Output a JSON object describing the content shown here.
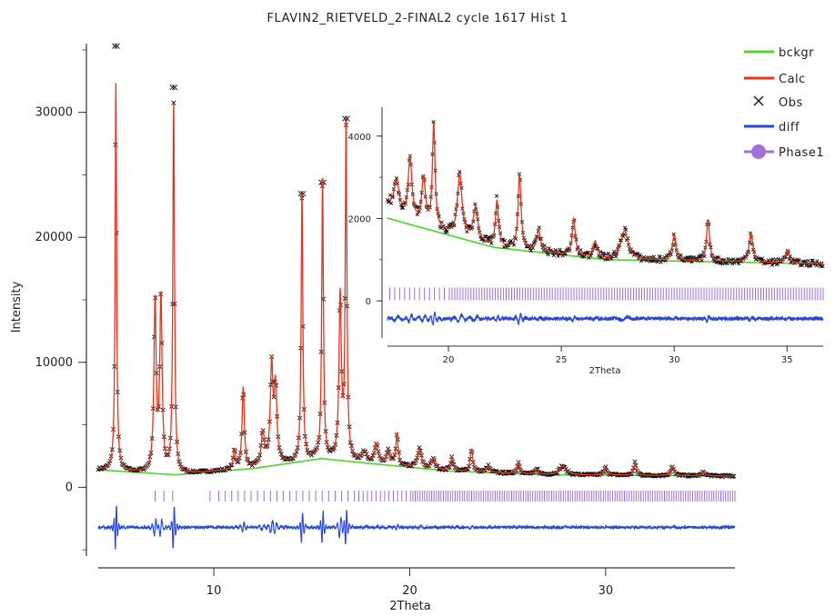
{
  "chart_data": [
    {
      "type": "line",
      "title": "FLAVIN2_RIETVELD_2-FINAL2 cycle 1617 Hist 1",
      "xlabel": "2Theta",
      "ylabel": "Intensity",
      "xlim": [
        4.1,
        36.6
      ],
      "ylim": [
        -5500,
        35500
      ],
      "x_ticks": [
        10,
        20,
        30
      ],
      "y_ticks": [
        0,
        10000,
        20000,
        30000
      ],
      "legend": [
        "bckgr",
        "Calc",
        "Obs",
        "diff",
        "Phase1"
      ],
      "legend_position": "top-right",
      "colors": {
        "bckgr": "#55d230",
        "Calc": "#e8351c",
        "Obs": "#111111",
        "diff": "#2447d6",
        "Phase1": "#a070dc"
      },
      "background": [
        [
          4.1,
          1400
        ],
        [
          8,
          1000
        ],
        [
          12,
          1500
        ],
        [
          15.5,
          2300
        ],
        [
          18,
          1900
        ],
        [
          22,
          1300
        ],
        [
          27,
          1000
        ],
        [
          36.5,
          900
        ]
      ],
      "peaks": [
        {
          "x": 5.0,
          "height": 31000,
          "width": 0.045
        },
        {
          "x": 7.0,
          "height": 13500,
          "width": 0.07
        },
        {
          "x": 7.3,
          "height": 13800,
          "width": 0.07
        },
        {
          "x": 7.95,
          "height": 29500,
          "width": 0.05
        },
        {
          "x": 11.05,
          "height": 1500,
          "width": 0.07
        },
        {
          "x": 11.5,
          "height": 6500,
          "width": 0.07
        },
        {
          "x": 12.5,
          "height": 2600,
          "width": 0.1
        },
        {
          "x": 12.95,
          "height": 7800,
          "width": 0.08
        },
        {
          "x": 13.15,
          "height": 6000,
          "width": 0.08
        },
        {
          "x": 14.5,
          "height": 21500,
          "width": 0.05
        },
        {
          "x": 15.55,
          "height": 22300,
          "width": 0.05
        },
        {
          "x": 16.45,
          "height": 13000,
          "width": 0.07
        },
        {
          "x": 16.75,
          "height": 26500,
          "width": 0.05
        },
        {
          "x": 17.7,
          "height": 800,
          "width": 0.15
        },
        {
          "x": 18.3,
          "height": 1500,
          "width": 0.1
        },
        {
          "x": 18.9,
          "height": 1100,
          "width": 0.1
        },
        {
          "x": 19.35,
          "height": 2500,
          "width": 0.07
        },
        {
          "x": 20.5,
          "height": 1500,
          "width": 0.12
        },
        {
          "x": 21.2,
          "height": 800,
          "width": 0.12
        },
        {
          "x": 22.15,
          "height": 1100,
          "width": 0.08
        },
        {
          "x": 23.15,
          "height": 1800,
          "width": 0.08
        },
        {
          "x": 24.0,
          "height": 500,
          "width": 0.1
        },
        {
          "x": 25.55,
          "height": 900,
          "width": 0.08
        },
        {
          "x": 26.5,
          "height": 400,
          "width": 0.1
        },
        {
          "x": 27.8,
          "height": 700,
          "width": 0.2
        },
        {
          "x": 30.0,
          "height": 600,
          "width": 0.1
        },
        {
          "x": 31.5,
          "height": 1000,
          "width": 0.08
        },
        {
          "x": 33.4,
          "height": 700,
          "width": 0.1
        },
        {
          "x": 35.0,
          "height": 300,
          "width": 0.1
        }
      ],
      "obs_overshoot": [
        {
          "x": 5.0,
          "y": 35300
        },
        {
          "x": 7.95,
          "y": 32000
        },
        {
          "x": 14.5,
          "y": 23500
        },
        {
          "x": 15.55,
          "y": 24400
        },
        {
          "x": 16.75,
          "y": 29500
        }
      ],
      "tick_marks_y": -700,
      "diff_offset": -3200
    },
    {
      "type": "line",
      "xlabel": "2Theta",
      "xlim": [
        17.3,
        36.6
      ],
      "ylim": [
        -900,
        4700
      ],
      "x_ticks": [
        20,
        25,
        30,
        35
      ],
      "y_ticks": [
        0,
        2000,
        4000
      ],
      "tick_marks_y": 170,
      "diff_offset": -430
    }
  ]
}
